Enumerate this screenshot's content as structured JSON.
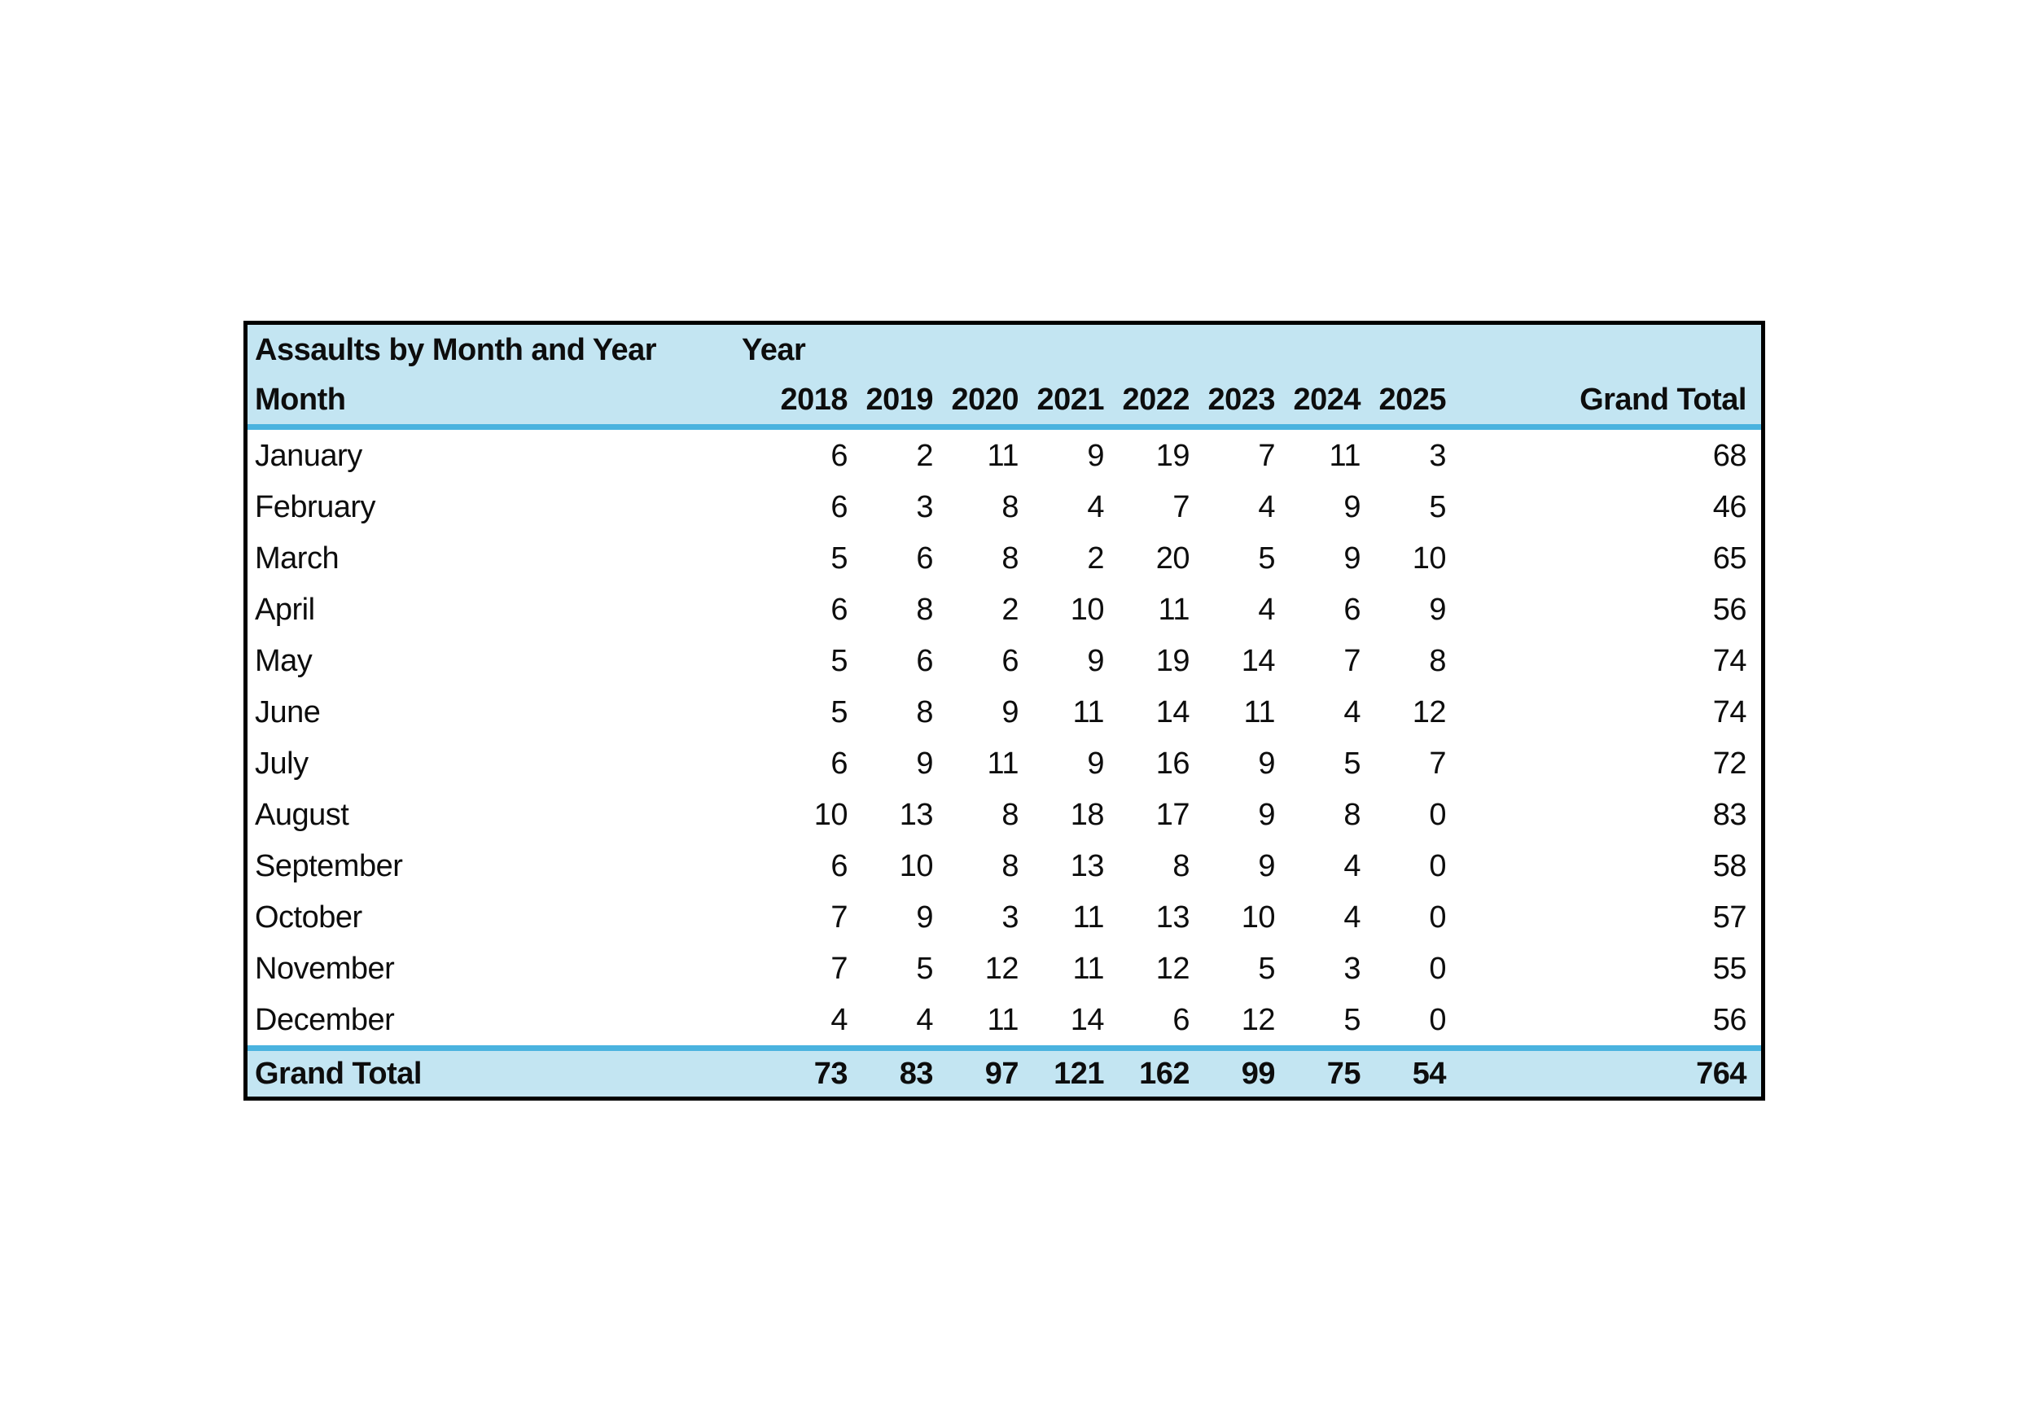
{
  "colors": {
    "header_bg": "#c3e5f2",
    "separator_blue": "#4ab3df",
    "border": "#000000",
    "text": "#0d0d0d"
  },
  "chart_data": {
    "type": "table",
    "title": "Assaults by Month and Year",
    "column_group_label": "Year",
    "row_header_label": "Month",
    "grand_total_label": "Grand Total",
    "years": [
      "2018",
      "2019",
      "2020",
      "2021",
      "2022",
      "2023",
      "2024",
      "2025"
    ],
    "series": [
      {
        "name": "January",
        "values": [
          6,
          2,
          11,
          9,
          19,
          7,
          11,
          3
        ],
        "total": 68
      },
      {
        "name": "February",
        "values": [
          6,
          3,
          8,
          4,
          7,
          4,
          9,
          5
        ],
        "total": 46
      },
      {
        "name": "March",
        "values": [
          5,
          6,
          8,
          2,
          20,
          5,
          9,
          10
        ],
        "total": 65
      },
      {
        "name": "April",
        "values": [
          6,
          8,
          2,
          10,
          11,
          4,
          6,
          9
        ],
        "total": 56
      },
      {
        "name": "May",
        "values": [
          5,
          6,
          6,
          9,
          19,
          14,
          7,
          8
        ],
        "total": 74
      },
      {
        "name": "June",
        "values": [
          5,
          8,
          9,
          11,
          14,
          11,
          4,
          12
        ],
        "total": 74
      },
      {
        "name": "July",
        "values": [
          6,
          9,
          11,
          9,
          16,
          9,
          5,
          7
        ],
        "total": 72
      },
      {
        "name": "August",
        "values": [
          10,
          13,
          8,
          18,
          17,
          9,
          8,
          0
        ],
        "total": 83
      },
      {
        "name": "September",
        "values": [
          6,
          10,
          8,
          13,
          8,
          9,
          4,
          0
        ],
        "total": 58
      },
      {
        "name": "October",
        "values": [
          7,
          9,
          3,
          11,
          13,
          10,
          4,
          0
        ],
        "total": 57
      },
      {
        "name": "November",
        "values": [
          7,
          5,
          12,
          11,
          12,
          5,
          3,
          0
        ],
        "total": 55
      },
      {
        "name": "December",
        "values": [
          4,
          4,
          11,
          14,
          6,
          12,
          5,
          0
        ],
        "total": 56
      }
    ],
    "column_totals": [
      73,
      83,
      97,
      121,
      162,
      99,
      75,
      54
    ],
    "grand_total": 764
  }
}
